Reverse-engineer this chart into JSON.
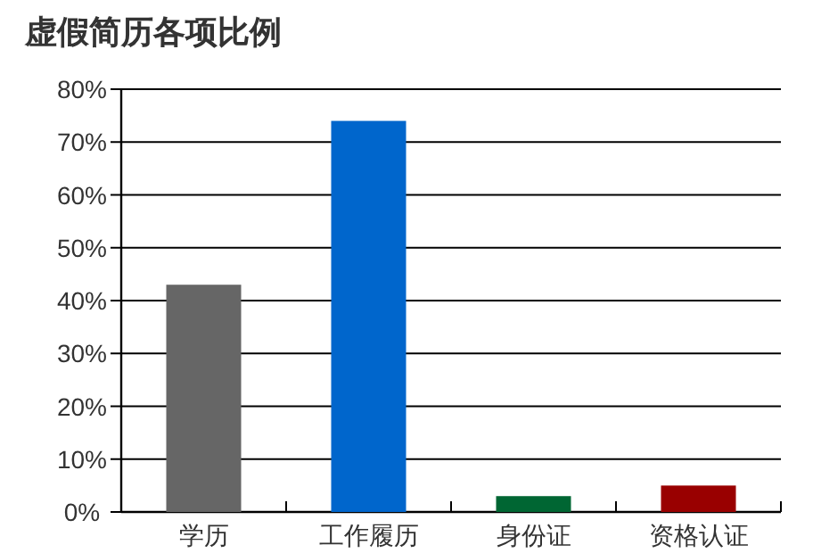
{
  "chart_data": {
    "type": "bar",
    "title": "虚假简历各项比例",
    "categories": [
      "学历",
      "工作履历",
      "身份证",
      "资格认证"
    ],
    "values": [
      43,
      74,
      3,
      5
    ],
    "colors": [
      "#666666",
      "#0066cc",
      "#006633",
      "#990000"
    ],
    "ylim": [
      0,
      80
    ],
    "yticks": [
      {
        "value": 0,
        "label": "0%"
      },
      {
        "value": 10,
        "label": "10%"
      },
      {
        "value": 20,
        "label": "20%"
      },
      {
        "value": 30,
        "label": "30%"
      },
      {
        "value": 40,
        "label": "40%"
      },
      {
        "value": 50,
        "label": "50%"
      },
      {
        "value": 60,
        "label": "60%"
      },
      {
        "value": 70,
        "label": "70%"
      },
      {
        "value": 80,
        "label": "80%"
      }
    ],
    "grid": "y"
  }
}
